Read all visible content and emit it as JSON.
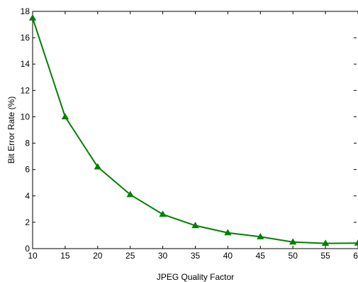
{
  "chart_data": {
    "type": "line",
    "title": "",
    "xlabel": "JPEG Quality Factor",
    "ylabel": "Bit Error Rate (%)",
    "xlim": [
      10,
      60
    ],
    "ylim": [
      0,
      18
    ],
    "x_ticks": [
      10,
      15,
      20,
      25,
      30,
      35,
      40,
      45,
      50,
      55,
      60
    ],
    "x_tick_labels": [
      "10",
      "15",
      "20",
      "25",
      "30",
      "35",
      "40",
      "45",
      "50",
      "55",
      "60"
    ],
    "y_ticks": [
      0,
      2,
      4,
      6,
      8,
      10,
      12,
      14,
      16,
      18
    ],
    "y_tick_labels": [
      "0",
      "2",
      "4",
      "6",
      "8",
      "10",
      "12",
      "14",
      "16",
      "18"
    ],
    "grid": false,
    "legend": "none",
    "series": [
      {
        "color": "#008000",
        "marker": "triangle",
        "x": [
          10,
          15,
          20,
          25,
          30,
          35,
          40,
          45,
          50,
          55,
          60
        ],
        "y": [
          17.5,
          10.0,
          6.2,
          4.1,
          2.6,
          1.75,
          1.2,
          0.9,
          0.5,
          0.4,
          0.42
        ]
      }
    ]
  }
}
